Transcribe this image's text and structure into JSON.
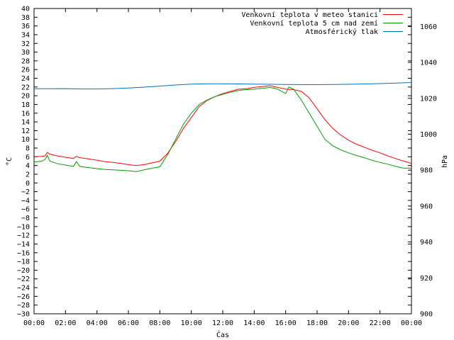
{
  "chart_data": {
    "type": "line",
    "xlabel": "Čas",
    "ylabel": "°C",
    "y2label": "hPa",
    "x_ticks": [
      "00:00",
      "02:00",
      "04:00",
      "06:00",
      "08:00",
      "10:00",
      "12:00",
      "14:00",
      "16:00",
      "18:00",
      "20:00",
      "22:00",
      "00:00"
    ],
    "x_range_hours": [
      0,
      24
    ],
    "ylim": [
      -30,
      40
    ],
    "y_tick_step": 2,
    "y2lim": [
      900,
      1070
    ],
    "y2_ticks": [
      900,
      920,
      940,
      960,
      980,
      1000,
      1020,
      1040,
      1060
    ],
    "grid": false,
    "legend_position": "top-right",
    "series": [
      {
        "name": "Venkovní teplota v meteo stanici",
        "axis": "left",
        "color": "#ff0000",
        "x": [
          0,
          0.5,
          0.7,
          0.85,
          1.0,
          1.5,
          2.0,
          2.5,
          2.7,
          2.9,
          3.5,
          4.0,
          4.5,
          5.0,
          5.5,
          6.0,
          6.5,
          7.0,
          7.5,
          8.0,
          8.5,
          9.0,
          9.5,
          10.0,
          10.5,
          11.0,
          11.5,
          12.0,
          12.5,
          13.0,
          13.5,
          14.0,
          14.5,
          15.0,
          15.5,
          16.0,
          16.5,
          17.0,
          17.5,
          18.0,
          18.5,
          19.0,
          19.5,
          20.0,
          20.5,
          21.0,
          21.5,
          22.0,
          22.5,
          23.0,
          23.5,
          24.0
        ],
        "y": [
          6.0,
          6.1,
          6.2,
          7.0,
          6.6,
          6.2,
          5.9,
          5.6,
          6.1,
          5.8,
          5.5,
          5.2,
          4.9,
          4.7,
          4.5,
          4.2,
          4.0,
          4.2,
          4.6,
          5.0,
          6.8,
          9.5,
          12.5,
          15.0,
          17.5,
          18.9,
          19.8,
          20.5,
          21.0,
          21.5,
          21.6,
          21.9,
          22.1,
          22.3,
          21.9,
          21.5,
          21.4,
          21.0,
          19.5,
          17.0,
          14.5,
          12.5,
          11.0,
          9.8,
          8.9,
          8.2,
          7.5,
          6.9,
          6.2,
          5.6,
          5.0,
          4.5
        ]
      },
      {
        "name": "Venkovní teplota 5 cm nad zemí",
        "axis": "left",
        "color": "#00a000",
        "x": [
          0,
          0.5,
          0.7,
          0.85,
          1.0,
          1.5,
          2.0,
          2.5,
          2.7,
          2.9,
          3.5,
          4.0,
          4.5,
          5.0,
          5.5,
          6.0,
          6.5,
          7.0,
          7.5,
          8.0,
          8.5,
          9.0,
          9.5,
          10.0,
          10.5,
          11.0,
          11.5,
          12.0,
          12.5,
          13.0,
          13.5,
          14.0,
          14.5,
          15.0,
          15.5,
          16.0,
          16.2,
          16.5,
          17.0,
          17.5,
          18.0,
          18.5,
          19.0,
          19.5,
          20.0,
          20.5,
          21.0,
          21.5,
          22.0,
          22.5,
          23.0,
          23.5,
          24.0
        ],
        "y": [
          4.8,
          5.0,
          5.4,
          6.3,
          5.0,
          4.4,
          4.1,
          3.8,
          4.9,
          3.8,
          3.5,
          3.3,
          3.1,
          3.0,
          2.9,
          2.8,
          2.6,
          3.0,
          3.4,
          3.7,
          6.5,
          10.0,
          13.5,
          16.0,
          18.0,
          19.0,
          19.8,
          20.3,
          20.8,
          21.2,
          21.4,
          21.5,
          21.7,
          21.9,
          21.5,
          20.5,
          22.0,
          21.5,
          19.0,
          16.0,
          13.0,
          10.0,
          8.5,
          7.6,
          6.9,
          6.3,
          5.8,
          5.2,
          4.7,
          4.3,
          3.8,
          3.4,
          3.4
        ]
      },
      {
        "name": "Atmosférický tlak",
        "axis": "right",
        "color": "#0070c0",
        "x": [
          0,
          1,
          2,
          3,
          4,
          5,
          6,
          7,
          8,
          9,
          10,
          11,
          12,
          13,
          14,
          15,
          16,
          17,
          18,
          19,
          20,
          21,
          22,
          23,
          24
        ],
        "y": [
          1025.3,
          1025.3,
          1025.4,
          1025.2,
          1025.2,
          1025.4,
          1025.7,
          1026.2,
          1026.8,
          1027.4,
          1027.9,
          1028.1,
          1028.1,
          1028.0,
          1027.9,
          1027.8,
          1027.7,
          1027.6,
          1027.6,
          1027.7,
          1027.8,
          1028.0,
          1028.2,
          1028.5,
          1028.8
        ]
      }
    ]
  }
}
